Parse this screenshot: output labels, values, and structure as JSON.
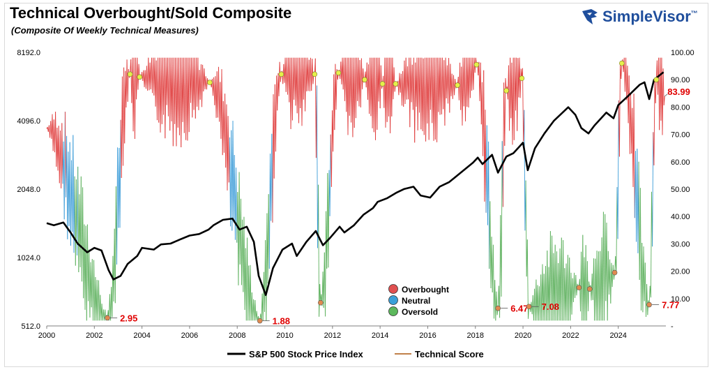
{
  "header": {
    "title": "Technical Overbought/Sold Composite",
    "subtitle": "(Composite Of Weekly Technical Measures)",
    "brand": "SimpleVisor",
    "brand_tm": "™",
    "brand_icon": "eagle-head-icon",
    "brand_color": "#1f4e9c"
  },
  "chart_data": {
    "type": "line",
    "xlim": [
      2000,
      2026
    ],
    "x_ticks": [
      "2000",
      "2002",
      "2004",
      "2006",
      "2008",
      "2010",
      "2012",
      "2014",
      "2016",
      "2018",
      "2020",
      "2022",
      "2024"
    ],
    "left_axis": {
      "scale": "log2",
      "ylim": [
        512,
        8192
      ],
      "ticks": [
        "8192.0",
        "4096.0",
        "2048.0",
        "1024.0",
        "512.0"
      ],
      "tick_values": [
        8192,
        4096,
        2048,
        1024,
        512
      ]
    },
    "right_axis": {
      "ylim": [
        0,
        100
      ],
      "ticks": [
        "100.00",
        "90.00",
        "80.00",
        "70.00",
        "60.00",
        "50.00",
        "40.00",
        "30.00",
        "20.00",
        "10.00",
        "-"
      ],
      "tick_values": [
        100,
        90,
        80,
        70,
        60,
        50,
        40,
        30,
        20,
        10,
        0
      ]
    },
    "grid": false,
    "legend_bottom": [
      {
        "name": "S&P 500 Stock Price Index",
        "color": "#000000"
      },
      {
        "name": "Technical Score",
        "color": "#c0804a"
      }
    ],
    "legend_markers": [
      {
        "name": "Overbought",
        "color": "#e05050"
      },
      {
        "name": "Neutral",
        "color": "#3aa0d8"
      },
      {
        "name": "Oversold",
        "color": "#5cb85c"
      }
    ],
    "colors": {
      "overbought": "#e03c3c",
      "neutral": "#3c9cd8",
      "oversold": "#5cb05c",
      "price": "#000000",
      "label": "#e00000",
      "peak_marker": "#e6f04a",
      "trough_marker": "#e08a50"
    },
    "sp500": [
      [
        2000.0,
        1450
      ],
      [
        2000.3,
        1420
      ],
      [
        2000.7,
        1460
      ],
      [
        2001.0,
        1320
      ],
      [
        2001.3,
        1180
      ],
      [
        2001.7,
        1080
      ],
      [
        2002.0,
        1130
      ],
      [
        2002.3,
        1100
      ],
      [
        2002.6,
        900
      ],
      [
        2002.8,
        820
      ],
      [
        2003.1,
        850
      ],
      [
        2003.4,
        960
      ],
      [
        2003.8,
        1040
      ],
      [
        2004.0,
        1130
      ],
      [
        2004.5,
        1110
      ],
      [
        2004.8,
        1170
      ],
      [
        2005.2,
        1180
      ],
      [
        2005.6,
        1230
      ],
      [
        2006.0,
        1280
      ],
      [
        2006.4,
        1300
      ],
      [
        2006.8,
        1360
      ],
      [
        2007.0,
        1420
      ],
      [
        2007.4,
        1500
      ],
      [
        2007.8,
        1520
      ],
      [
        2008.1,
        1360
      ],
      [
        2008.4,
        1400
      ],
      [
        2008.7,
        1200
      ],
      [
        2008.9,
        850
      ],
      [
        2009.2,
        700
      ],
      [
        2009.5,
        920
      ],
      [
        2009.9,
        1110
      ],
      [
        2010.3,
        1180
      ],
      [
        2010.5,
        1040
      ],
      [
        2010.9,
        1200
      ],
      [
        2011.3,
        1340
      ],
      [
        2011.6,
        1160
      ],
      [
        2011.9,
        1250
      ],
      [
        2012.3,
        1400
      ],
      [
        2012.5,
        1320
      ],
      [
        2012.9,
        1420
      ],
      [
        2013.3,
        1580
      ],
      [
        2013.7,
        1690
      ],
      [
        2013.9,
        1800
      ],
      [
        2014.3,
        1870
      ],
      [
        2014.7,
        1980
      ],
      [
        2015.0,
        2050
      ],
      [
        2015.4,
        2100
      ],
      [
        2015.7,
        1920
      ],
      [
        2016.1,
        1880
      ],
      [
        2016.5,
        2100
      ],
      [
        2016.9,
        2200
      ],
      [
        2017.3,
        2380
      ],
      [
        2017.9,
        2680
      ],
      [
        2018.1,
        2820
      ],
      [
        2018.3,
        2640
      ],
      [
        2018.7,
        2900
      ],
      [
        2018.95,
        2420
      ],
      [
        2019.3,
        2850
      ],
      [
        2019.6,
        2950
      ],
      [
        2020.0,
        3280
      ],
      [
        2020.2,
        2480
      ],
      [
        2020.5,
        3100
      ],
      [
        2020.9,
        3600
      ],
      [
        2021.3,
        4100
      ],
      [
        2021.9,
        4700
      ],
      [
        2022.2,
        4350
      ],
      [
        2022.45,
        3800
      ],
      [
        2022.75,
        3600
      ],
      [
        2023.0,
        3900
      ],
      [
        2023.5,
        4450
      ],
      [
        2023.8,
        4200
      ],
      [
        2024.0,
        4800
      ],
      [
        2024.4,
        5250
      ],
      [
        2024.9,
        5900
      ],
      [
        2025.1,
        6050
      ],
      [
        2025.3,
        5100
      ],
      [
        2025.5,
        6200
      ],
      [
        2025.9,
        6700
      ]
    ],
    "score_peaks": [
      [
        2003.5,
        92
      ],
      [
        2003.9,
        91
      ],
      [
        2006.85,
        89
      ],
      [
        2009.85,
        92
      ],
      [
        2011.25,
        92
      ],
      [
        2012.25,
        92.5
      ],
      [
        2013.35,
        90
      ],
      [
        2014.1,
        88.5
      ],
      [
        2014.65,
        88.5
      ],
      [
        2017.25,
        88
      ],
      [
        2018.05,
        95.5
      ],
      [
        2019.3,
        86
      ],
      [
        2019.95,
        90.5
      ],
      [
        2024.15,
        96
      ],
      [
        2025.6,
        90
      ]
    ],
    "score_troughs": [
      {
        "x": 2002.55,
        "y": 2.95,
        "label": "2.95"
      },
      {
        "x": 2008.95,
        "y": 1.88,
        "label": "1.88"
      },
      {
        "x": 2011.5,
        "y": 8.5
      },
      {
        "x": 2018.95,
        "y": 6.47,
        "label": "6.47"
      },
      {
        "x": 2020.25,
        "y": 7.08,
        "label": "7.08"
      },
      {
        "x": 2022.35,
        "y": 14
      },
      {
        "x": 2022.8,
        "y": 13.5
      },
      {
        "x": 2023.85,
        "y": 19.5
      },
      {
        "x": 2025.3,
        "y": 7.77,
        "label": "7.77"
      }
    ],
    "score_current": {
      "x": 2025.95,
      "y": 83.99,
      "label": "83.99"
    }
  }
}
